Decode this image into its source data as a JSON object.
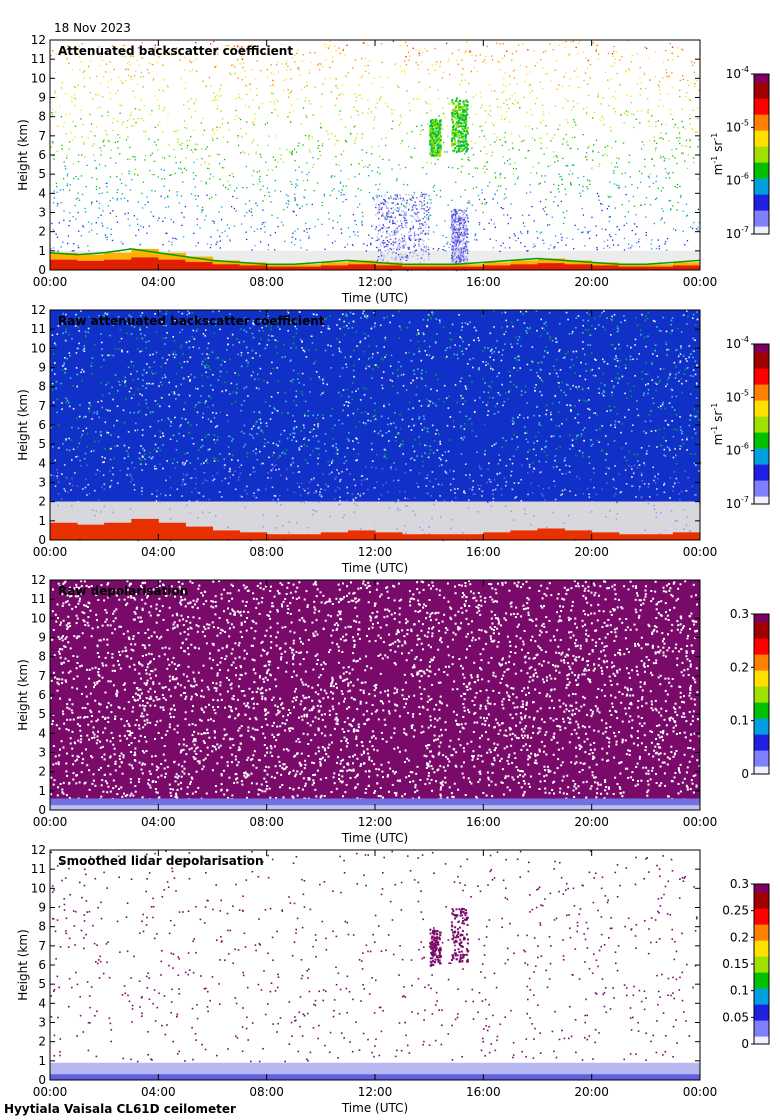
{
  "date_label": "18 Nov 2023",
  "footer": "Hyytiala Vaisala CL61D ceilometer",
  "colors": {
    "sky_low": "#d8d8dc",
    "depol_high": "#7a0a6a",
    "depol_low": "#b8b8f0",
    "cmap": [
      "#f0f0ff",
      "#8080ff",
      "#2020e0",
      "#00a0e0",
      "#00c000",
      "#a0e000",
      "#ffe000",
      "#ff8000",
      "#ff0000",
      "#a00000",
      "#800060"
    ]
  },
  "chart_data": [
    {
      "type": "heatmap",
      "title": "Attenuated backscatter coefficient",
      "xlabel": "Time (UTC)",
      "ylabel": "Height (km)",
      "xticks": [
        "00:00",
        "04:00",
        "08:00",
        "12:00",
        "16:00",
        "20:00",
        "00:00"
      ],
      "yticks": [
        "0",
        "1",
        "2",
        "3",
        "4",
        "5",
        "6",
        "7",
        "8",
        "9",
        "10",
        "11",
        "12"
      ],
      "ylim": [
        0,
        12
      ],
      "colorbar": {
        "scale": "log",
        "ticks": [
          {
            "base": "10",
            "exp": "-7"
          },
          {
            "base": "10",
            "exp": "-6"
          },
          {
            "base": "10",
            "exp": "-5"
          },
          {
            "base": "10",
            "exp": "-4"
          }
        ],
        "unit": {
          "m": "m",
          "m_exp": "-1",
          "sr": "sr",
          "sr_exp": "-1"
        }
      },
      "style": "sparse",
      "features": {
        "boundary_layer_top_km": [
          0.9,
          0.8,
          0.9,
          1.1,
          0.9,
          0.7,
          0.5,
          0.4,
          0.3,
          0.3,
          0.4,
          0.5,
          0.4,
          0.3,
          0.3,
          0.3,
          0.4,
          0.5,
          0.6,
          0.5,
          0.4,
          0.3,
          0.3,
          0.4,
          0.5
        ],
        "clouds": [
          {
            "t0": 14.0,
            "t1": 14.4,
            "h0": 6.0,
            "h1": 7.9
          },
          {
            "t0": 14.8,
            "t1": 15.4,
            "h0": 6.2,
            "h1": 9.0
          }
        ],
        "precip_columns": [
          {
            "t0": 12.0,
            "t1": 14.0,
            "h_top": 4.0
          },
          {
            "t0": 14.8,
            "t1": 15.4,
            "h_top": 3.2
          }
        ]
      }
    },
    {
      "type": "heatmap",
      "title": "Raw attenuated backscatter coefficient",
      "xlabel": "Time (UTC)",
      "ylabel": "Height (km)",
      "xticks": [
        "00:00",
        "04:00",
        "08:00",
        "12:00",
        "16:00",
        "20:00",
        "00:00"
      ],
      "yticks": [
        "0",
        "1",
        "2",
        "3",
        "4",
        "5",
        "6",
        "7",
        "8",
        "9",
        "10",
        "11",
        "12"
      ],
      "ylim": [
        0,
        12
      ],
      "colorbar": {
        "scale": "log",
        "ticks": [
          {
            "base": "10",
            "exp": "-7"
          },
          {
            "base": "10",
            "exp": "-6"
          },
          {
            "base": "10",
            "exp": "-5"
          },
          {
            "base": "10",
            "exp": "-4"
          }
        ],
        "unit": {
          "m": "m",
          "m_exp": "-1",
          "sr": "sr",
          "sr_exp": "-1"
        }
      },
      "style": "noisy",
      "features": {
        "clean_below_km": 2.0
      }
    },
    {
      "type": "heatmap",
      "title": "Raw depolarisation",
      "xlabel": "Time (UTC)",
      "ylabel": "Height (km)",
      "xticks": [
        "00:00",
        "04:00",
        "08:00",
        "12:00",
        "16:00",
        "20:00",
        "00:00"
      ],
      "yticks": [
        "0",
        "1",
        "2",
        "3",
        "4",
        "5",
        "6",
        "7",
        "8",
        "9",
        "10",
        "11",
        "12"
      ],
      "ylim": [
        0,
        12
      ],
      "colorbar": {
        "scale": "linear",
        "range": [
          0,
          0.3
        ],
        "ticks": [
          "0",
          "0.1",
          "0.2",
          "0.3"
        ]
      },
      "style": "depol_noise"
    },
    {
      "type": "heatmap",
      "title": "Smoothed lidar depolarisation",
      "xlabel": "Time (UTC)",
      "ylabel": "Height (km)",
      "xticks": [
        "00:00",
        "04:00",
        "08:00",
        "12:00",
        "16:00",
        "20:00",
        "00:00"
      ],
      "yticks": [
        "0",
        "1",
        "2",
        "3",
        "4",
        "5",
        "6",
        "7",
        "8",
        "9",
        "10",
        "11",
        "12"
      ],
      "ylim": [
        0,
        12
      ],
      "colorbar": {
        "scale": "linear",
        "range": [
          0,
          0.3
        ],
        "ticks": [
          "0",
          "0.05",
          "0.1",
          "0.15",
          "0.2",
          "0.25",
          "0.3"
        ]
      },
      "style": "depol_sparse"
    }
  ]
}
